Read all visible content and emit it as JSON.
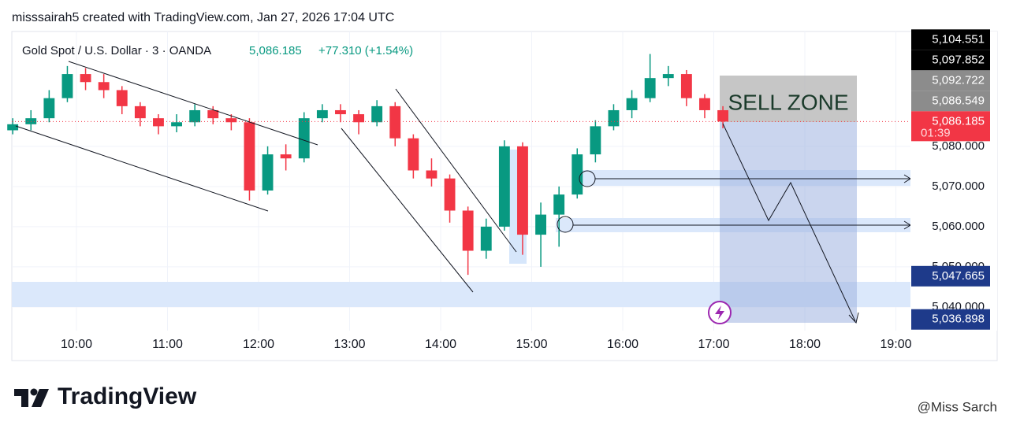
{
  "header": {
    "credit": "misssairah5 created with TradingView.com, Jan 27, 2026 17:04 UTC"
  },
  "chart_data": {
    "type": "candlestick",
    "symbol": "Gold Spot / U.S. Dollar · 3 · OANDA",
    "last_price": "5,086.185",
    "change": "+77.310 (+1.54%)",
    "zone_label": "SELL ZONE",
    "up_color": "#089981",
    "down_color": "#f23645",
    "grid": true,
    "xlim": [
      9.29,
      19.16
    ],
    "ylim": [
      5034.1,
      5108.6
    ],
    "xticks": [
      {
        "value": 10,
        "label": "10:00"
      },
      {
        "value": 11,
        "label": "11:00"
      },
      {
        "value": 12,
        "label": "12:00"
      },
      {
        "value": 13,
        "label": "13:00"
      },
      {
        "value": 14,
        "label": "14:00"
      },
      {
        "value": 15,
        "label": "15:00"
      },
      {
        "value": 16,
        "label": "16:00"
      },
      {
        "value": 17,
        "label": "17:00"
      },
      {
        "value": 18,
        "label": "18:00"
      },
      {
        "value": 19,
        "label": "19:00"
      }
    ],
    "yticks": [
      {
        "value": 5040,
        "label": "5,040.000"
      },
      {
        "value": 5050,
        "label": "5,050.000"
      },
      {
        "value": 5060,
        "label": "5,060.000"
      },
      {
        "value": 5070,
        "label": "5,070.000"
      },
      {
        "value": 5080,
        "label": "5,080.000"
      }
    ],
    "candles": [
      {
        "t": 9.3,
        "o": 5084,
        "h": 5087,
        "l": 5083,
        "c": 5085.5
      },
      {
        "t": 9.5,
        "o": 5085.5,
        "h": 5089,
        "l": 5084,
        "c": 5087
      },
      {
        "t": 9.7,
        "o": 5087,
        "h": 5094,
        "l": 5086,
        "c": 5092
      },
      {
        "t": 9.9,
        "o": 5092,
        "h": 5100,
        "l": 5091,
        "c": 5098
      },
      {
        "t": 10.1,
        "o": 5098,
        "h": 5099.5,
        "l": 5094,
        "c": 5096
      },
      {
        "t": 10.3,
        "o": 5096,
        "h": 5098,
        "l": 5092,
        "c": 5094
      },
      {
        "t": 10.5,
        "o": 5094,
        "h": 5095,
        "l": 5088,
        "c": 5090
      },
      {
        "t": 10.7,
        "o": 5090,
        "h": 5091,
        "l": 5085,
        "c": 5087
      },
      {
        "t": 10.9,
        "o": 5087,
        "h": 5088,
        "l": 5083,
        "c": 5085
      },
      {
        "t": 11.1,
        "o": 5085,
        "h": 5088,
        "l": 5083.5,
        "c": 5086
      },
      {
        "t": 11.3,
        "o": 5086,
        "h": 5090.5,
        "l": 5085,
        "c": 5089
      },
      {
        "t": 11.5,
        "o": 5089,
        "h": 5090,
        "l": 5085.5,
        "c": 5087
      },
      {
        "t": 11.7,
        "o": 5087,
        "h": 5088,
        "l": 5084,
        "c": 5086
      },
      {
        "t": 11.9,
        "o": 5086,
        "h": 5087,
        "l": 5066.5,
        "c": 5069
      },
      {
        "t": 12.1,
        "o": 5069,
        "h": 5080,
        "l": 5068,
        "c": 5078
      },
      {
        "t": 12.3,
        "o": 5078,
        "h": 5080.5,
        "l": 5074,
        "c": 5077
      },
      {
        "t": 12.5,
        "o": 5077,
        "h": 5088.5,
        "l": 5076,
        "c": 5087
      },
      {
        "t": 12.7,
        "o": 5087,
        "h": 5090.5,
        "l": 5086,
        "c": 5089
      },
      {
        "t": 12.9,
        "o": 5089,
        "h": 5090.5,
        "l": 5086,
        "c": 5088
      },
      {
        "t": 13.1,
        "o": 5088,
        "h": 5089,
        "l": 5083,
        "c": 5086
      },
      {
        "t": 13.3,
        "o": 5086,
        "h": 5091.5,
        "l": 5085,
        "c": 5090
      },
      {
        "t": 13.5,
        "o": 5090,
        "h": 5091,
        "l": 5080,
        "c": 5082
      },
      {
        "t": 13.7,
        "o": 5082,
        "h": 5083,
        "l": 5072,
        "c": 5074
      },
      {
        "t": 13.9,
        "o": 5074,
        "h": 5077,
        "l": 5070,
        "c": 5072
      },
      {
        "t": 14.1,
        "o": 5072,
        "h": 5073,
        "l": 5061,
        "c": 5064
      },
      {
        "t": 14.3,
        "o": 5064,
        "h": 5065,
        "l": 5048,
        "c": 5054
      },
      {
        "t": 14.5,
        "o": 5054,
        "h": 5062,
        "l": 5052,
        "c": 5060
      },
      {
        "t": 14.7,
        "o": 5060,
        "h": 5081.5,
        "l": 5059,
        "c": 5080
      },
      {
        "t": 14.9,
        "o": 5080,
        "h": 5081,
        "l": 5053,
        "c": 5058
      },
      {
        "t": 15.1,
        "o": 5058,
        "h": 5066,
        "l": 5050,
        "c": 5063
      },
      {
        "t": 15.3,
        "o": 5063,
        "h": 5070,
        "l": 5055,
        "c": 5068
      },
      {
        "t": 15.5,
        "o": 5068,
        "h": 5079.5,
        "l": 5067,
        "c": 5078
      },
      {
        "t": 15.7,
        "o": 5078,
        "h": 5086.5,
        "l": 5076,
        "c": 5085
      },
      {
        "t": 15.9,
        "o": 5085,
        "h": 5090.5,
        "l": 5084,
        "c": 5089
      },
      {
        "t": 16.1,
        "o": 5089,
        "h": 5094,
        "l": 5087,
        "c": 5092
      },
      {
        "t": 16.3,
        "o": 5092,
        "h": 5103,
        "l": 5091,
        "c": 5097
      },
      {
        "t": 16.5,
        "o": 5097,
        "h": 5100,
        "l": 5095,
        "c": 5098
      },
      {
        "t": 16.7,
        "o": 5098,
        "h": 5099,
        "l": 5090,
        "c": 5092
      },
      {
        "t": 16.9,
        "o": 5092,
        "h": 5093,
        "l": 5087,
        "c": 5089
      },
      {
        "t": 17.1,
        "o": 5089,
        "h": 5090,
        "l": 5084.5,
        "c": 5086.185
      }
    ],
    "price_labels": [
      {
        "value": 5104.551,
        "label": "5,104.551",
        "color": "#000000"
      },
      {
        "value": 5097.852,
        "label": "5,097.852",
        "color": "#000000"
      },
      {
        "value": 5092.722,
        "label": "5,092.722",
        "color": "#8c8c8c"
      },
      {
        "value": 5086.549,
        "label": "5,086.549",
        "color": "#8c8c8c"
      },
      {
        "value": 5086.185,
        "label": "5,086.185",
        "color": "#f23645",
        "countdown": "01:39"
      },
      {
        "value": 5047.665,
        "label": "5,047.665",
        "color": "#1e3a8a"
      },
      {
        "value": 5036.898,
        "label": "5,036.898",
        "color": "#1e3a8a"
      }
    ]
  },
  "footer": {
    "brand": "TradingView",
    "watermark": "@Miss Sarch"
  }
}
